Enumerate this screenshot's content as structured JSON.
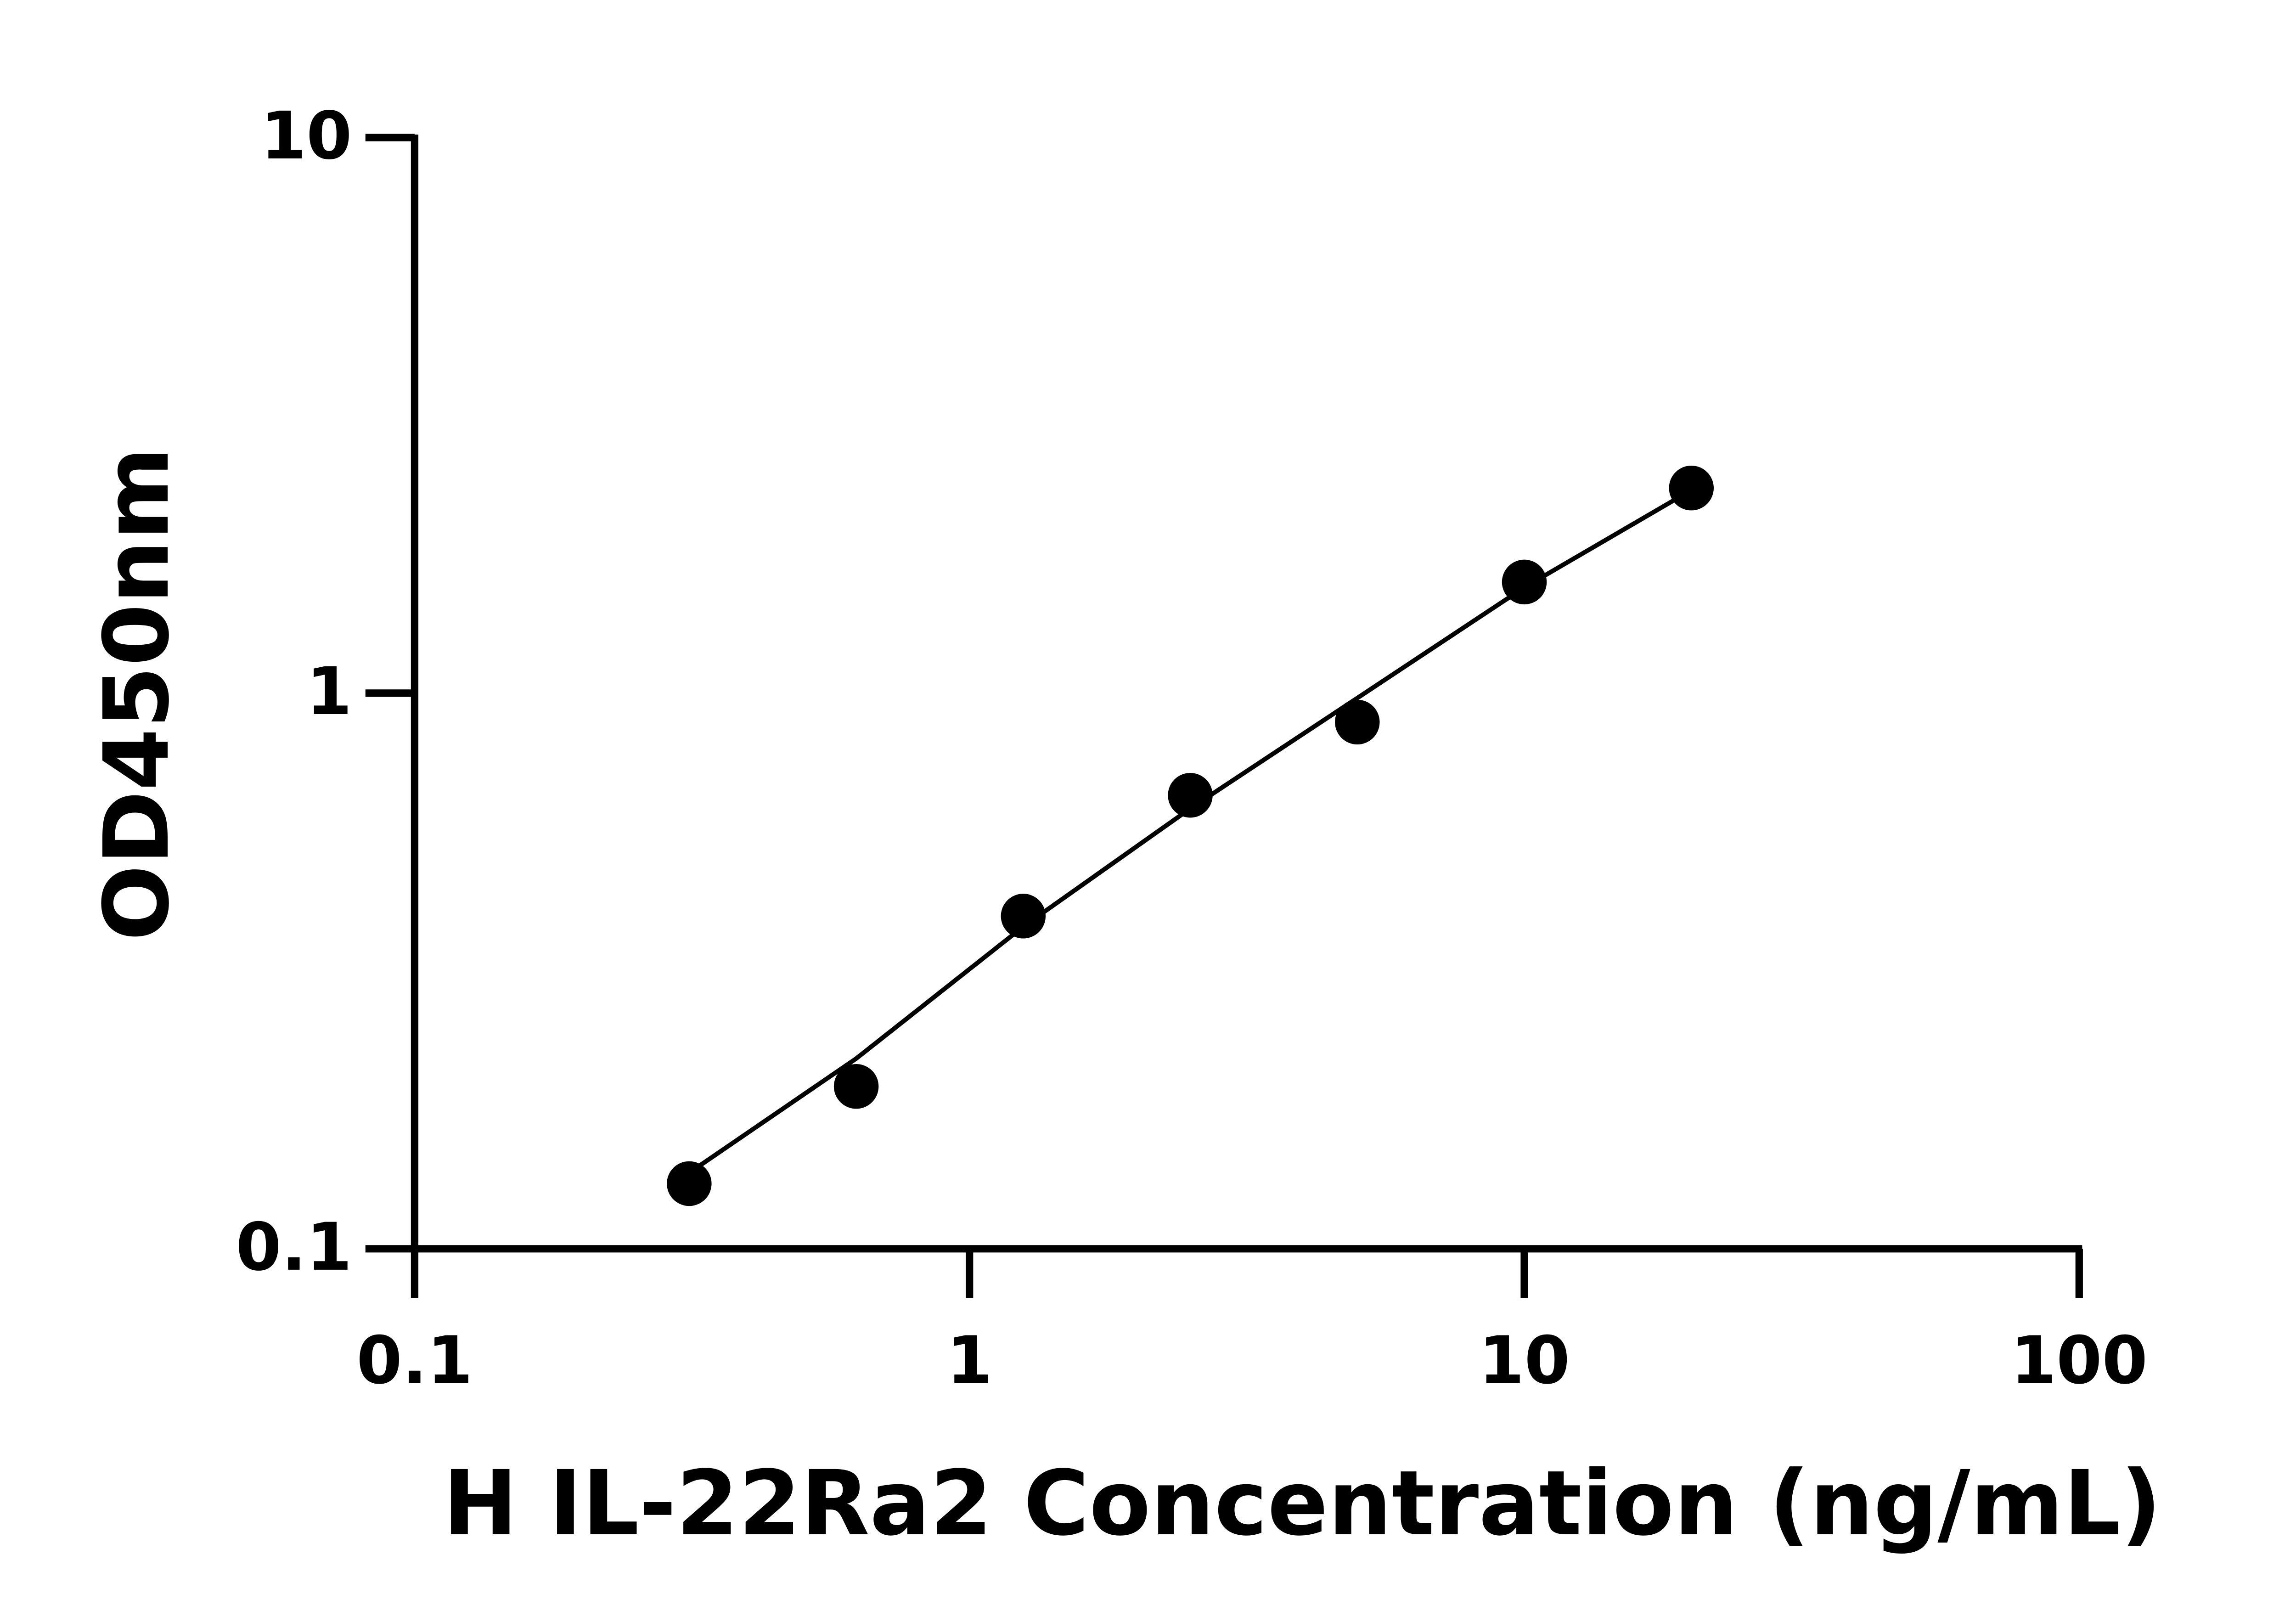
{
  "chart_data": {
    "type": "scatter",
    "x_label": "H IL-22Ra2 Concentration (ng/mL)",
    "y_label": "OD450nm",
    "xscale": "log",
    "yscale": "log",
    "xlim": [
      0.1,
      100
    ],
    "ylim": [
      0.1,
      10
    ],
    "xticks": [
      0.1,
      1,
      10,
      100
    ],
    "yticks": [
      0.1,
      1,
      10
    ],
    "x": [
      0.3125,
      0.625,
      1.25,
      2.5,
      5,
      10,
      20
    ],
    "series": [
      {
        "type": "scatter",
        "color": "#000000",
        "values": [
          0.131,
          0.196,
          0.397,
          0.655,
          0.887,
          1.585,
          2.34
        ]
      },
      {
        "type": "line",
        "color": "#000000",
        "values": [
          0.137,
          0.22,
          0.38,
          0.62,
          0.98,
          1.55,
          2.32
        ]
      }
    ]
  }
}
